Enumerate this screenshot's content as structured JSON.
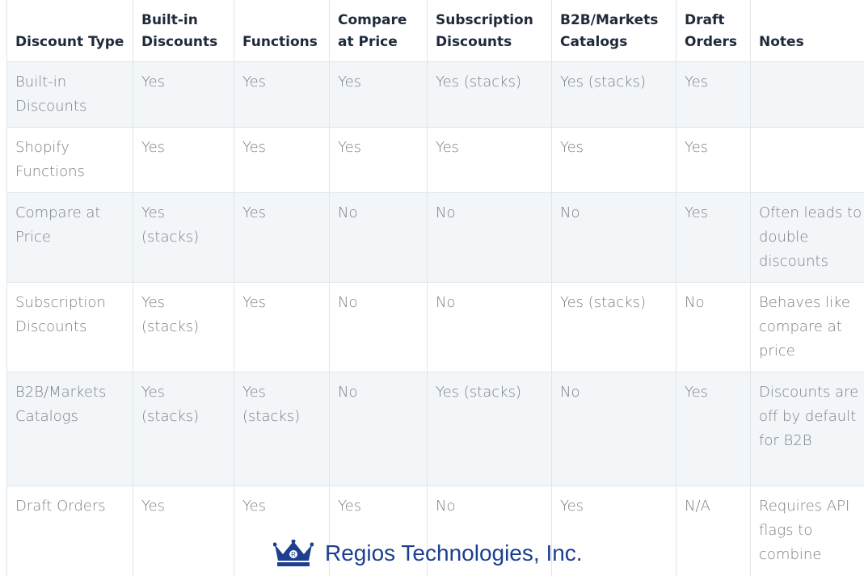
{
  "table": {
    "header": [
      "Discount Type",
      "Built-in Discounts",
      "Functions",
      "Compare at Price",
      "Subscription Discounts",
      "B2B/Markets Catalogs",
      "Draft Orders",
      "Notes"
    ],
    "rows": [
      [
        "Built-in Discounts",
        "Yes",
        "Yes",
        "Yes",
        "Yes (stacks)",
        "Yes (stacks)",
        "Yes",
        ""
      ],
      [
        "Shopify Functions",
        "Yes",
        "Yes",
        "Yes",
        "Yes",
        "Yes",
        "Yes",
        ""
      ],
      [
        "Compare at Price",
        "Yes (stacks)",
        "Yes",
        "No",
        "No",
        "No",
        "Yes",
        "Often leads to double discounts"
      ],
      [
        "Subscription Discounts",
        "Yes (stacks)",
        "Yes",
        "No",
        "No",
        "Yes (stacks)",
        "No",
        "Behaves like compare at price"
      ],
      [
        "B2B/Markets Catalogs",
        "Yes (stacks)",
        "Yes (stacks)",
        "No",
        "Yes (stacks)",
        "No",
        "Yes",
        "Discounts are off by default for B2B"
      ],
      [
        "Draft Orders",
        "Yes",
        "Yes",
        "Yes",
        "No",
        "Yes",
        "N/A",
        "Requires API flags to combine"
      ]
    ]
  },
  "watermark": {
    "text": "Regios Technologies, Inc."
  }
}
